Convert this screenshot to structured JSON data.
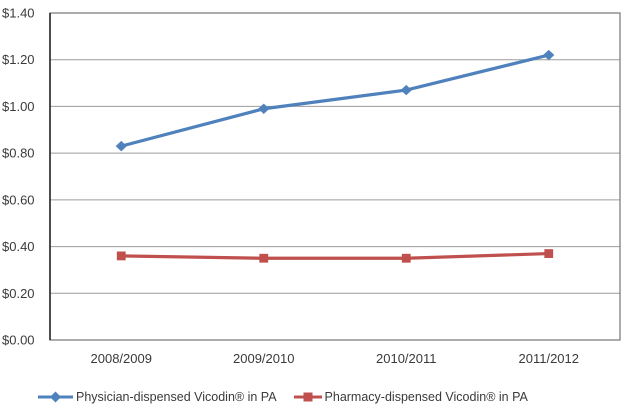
{
  "chart_data": {
    "type": "line",
    "title": "",
    "categories": [
      "2008/2009",
      "2009/2010",
      "2010/2011",
      "2011/2012"
    ],
    "series": [
      {
        "name": "Physician-dispensed Vicodin® in PA",
        "values": [
          0.83,
          0.99,
          1.07,
          1.22
        ],
        "color": "#4F81BD",
        "marker": "diamond"
      },
      {
        "name": "Pharmacy-dispensed Vicodin® in PA",
        "values": [
          0.36,
          0.35,
          0.35,
          0.37
        ],
        "color": "#C0504D",
        "marker": "square"
      }
    ],
    "y_axis": {
      "min": 0.0,
      "max": 1.4,
      "step": 0.2,
      "tick_labels": [
        "$1.40",
        "$1.20",
        "$1.00",
        "$0.80",
        "$0.60",
        "$0.40",
        "$0.20",
        "$0.00"
      ],
      "format": "currency"
    },
    "x_axis": {
      "label": ""
    },
    "grid": true,
    "legend_position": "bottom",
    "colors": {
      "gridline": "#9c9c9c",
      "plot_border": "#7f7f7f",
      "axis_line": "#2b2b2b",
      "tick_text": "#3a3a3a"
    }
  }
}
